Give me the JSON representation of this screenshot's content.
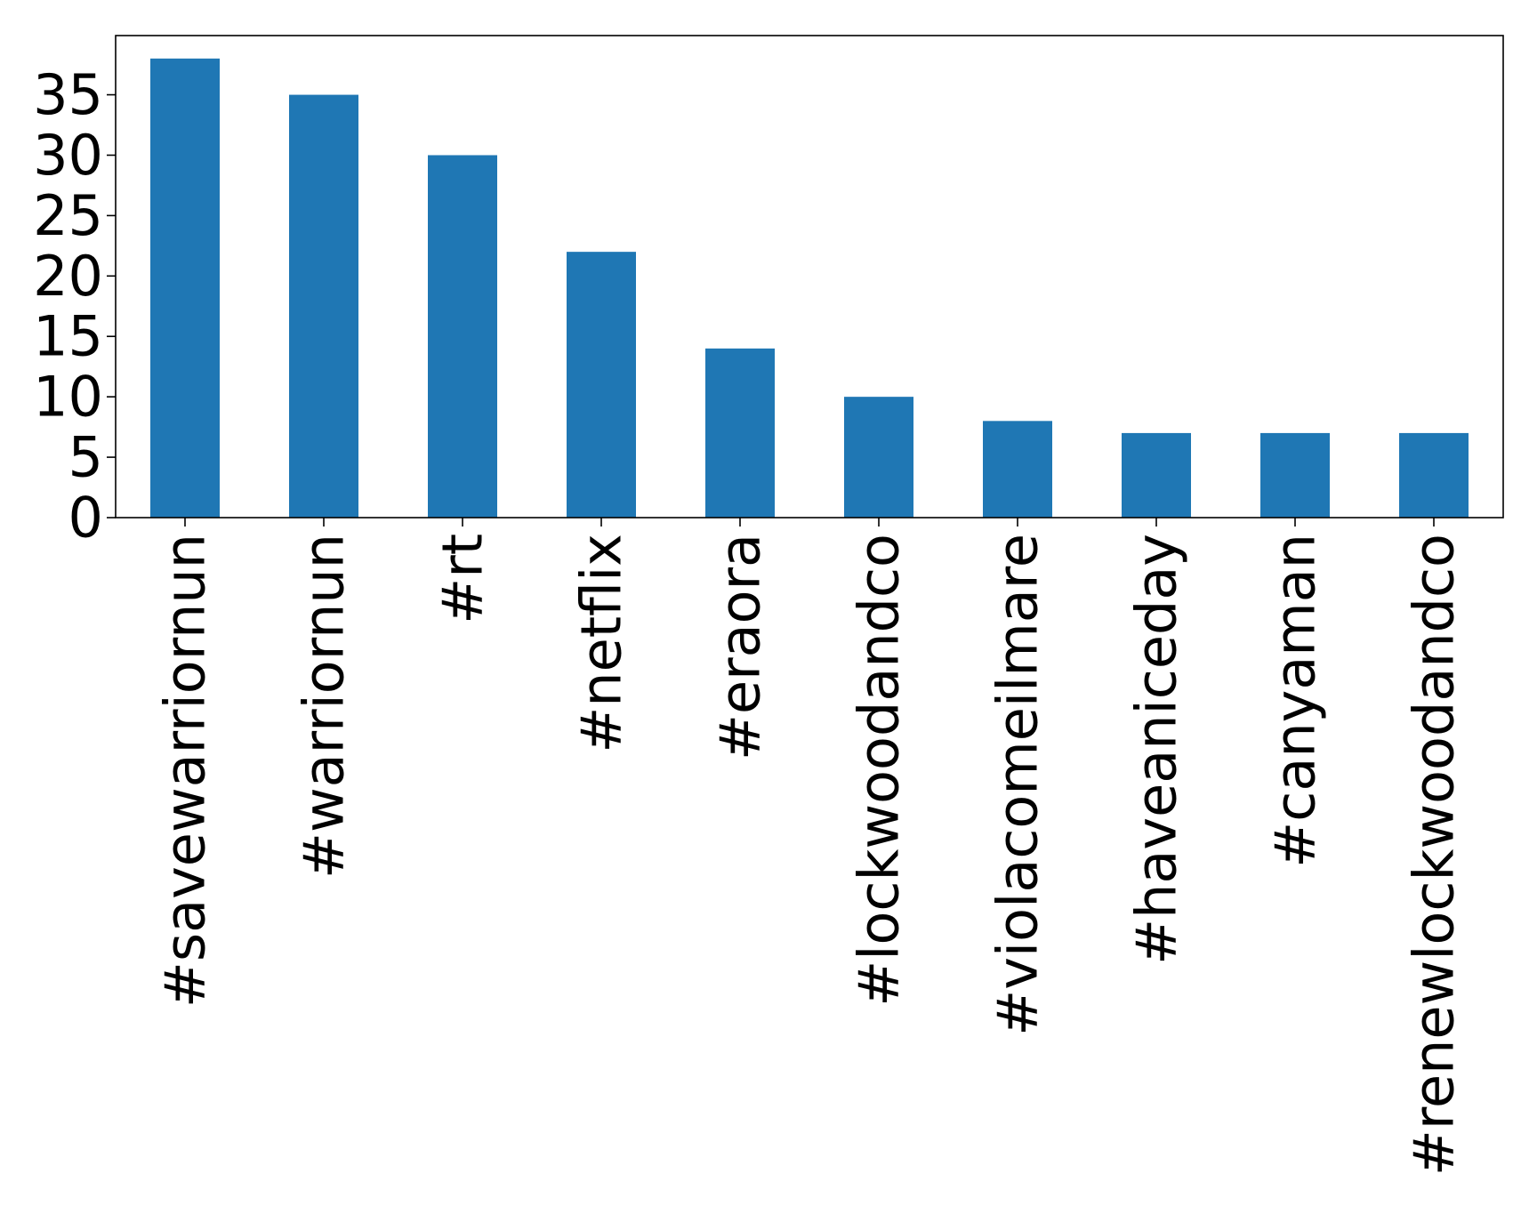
{
  "chart_data": {
    "type": "bar",
    "title": "",
    "xlabel": "",
    "ylabel": "",
    "categories": [
      "#savewarriornun",
      "#warriornun",
      "#rt",
      "#netflix",
      "#eraora",
      "#lockwoodandco",
      "#violacomeilmare",
      "#haveaniceday",
      "#canyaman",
      "#renewlockwoodandco"
    ],
    "values": [
      38,
      35,
      30,
      22,
      14,
      10,
      8,
      7,
      7,
      7
    ],
    "ylim": [
      0,
      39.9
    ],
    "yticks": [
      0,
      5,
      10,
      15,
      20,
      25,
      30,
      35
    ],
    "grid": false,
    "legend": "none",
    "colors": {
      "bar": "#1f77b4",
      "axes": "#000000",
      "background": "#ffffff"
    }
  }
}
